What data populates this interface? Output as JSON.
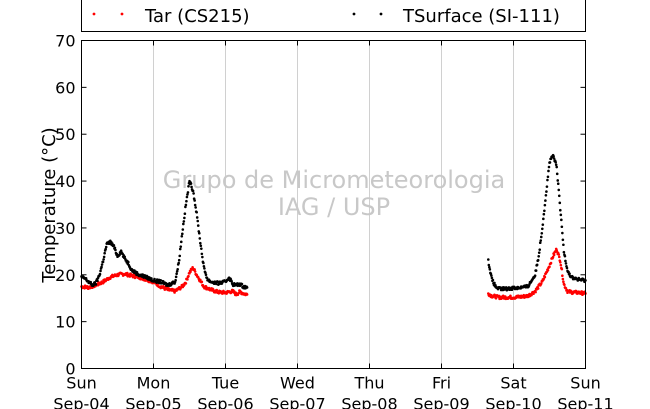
{
  "chart_data": {
    "type": "scatter",
    "title": "",
    "xlabel": "",
    "ylabel": "Temperature (°C)",
    "ylim": [
      0,
      70
    ],
    "yticks": [
      0,
      10,
      20,
      30,
      40,
      50,
      60,
      70
    ],
    "xlim": [
      0,
      7
    ],
    "x_unit": "days from Sun Sep-04 00:00",
    "xticks": [
      {
        "day": "Sun",
        "date": "Sep-04"
      },
      {
        "day": "Mon",
        "date": "Sep-05"
      },
      {
        "day": "Tue",
        "date": "Sep-06"
      },
      {
        "day": "Wed",
        "date": "Sep-07"
      },
      {
        "day": "Thu",
        "date": "Sep-08"
      },
      {
        "day": "Fri",
        "date": "Sep-09"
      },
      {
        "day": "Sat",
        "date": "Sep-10"
      },
      {
        "day": "Sun",
        "date": "Sep-11"
      }
    ],
    "grid": "vertical",
    "legend_position": "top",
    "watermark": [
      "Grupo de Micrometeorologia",
      "IAG / USP"
    ],
    "series": [
      {
        "name": "Tar (CS215)",
        "color": "#ff0000",
        "segments": [
          {
            "x": [
              0.0,
              0.1,
              0.2,
              0.3,
              0.4,
              0.5,
              0.6,
              0.7,
              0.8,
              0.9,
              1.0,
              1.1,
              1.2,
              1.3,
              1.4,
              1.45,
              1.5,
              1.55,
              1.6,
              1.7,
              1.8,
              1.9,
              2.0,
              2.1,
              2.15,
              2.2,
              2.25,
              2.3
            ],
            "y": [
              17.5,
              17.3,
              17.8,
              18.5,
              19.5,
              20.0,
              20.2,
              19.8,
              19.5,
              19.0,
              18.5,
              17.5,
              16.8,
              16.5,
              17.5,
              18.5,
              20.5,
              21.5,
              20.0,
              17.5,
              16.8,
              16.3,
              16.2,
              16.5,
              15.8,
              16.4,
              16.0,
              15.8
            ]
          },
          {
            "x": [
              5.65,
              5.7,
              5.8,
              5.9,
              6.0,
              6.1,
              6.2,
              6.3,
              6.4,
              6.5,
              6.55,
              6.6,
              6.65,
              6.7,
              6.75,
              6.8,
              6.9,
              7.0
            ],
            "y": [
              16.0,
              15.5,
              15.2,
              15.2,
              15.2,
              15.3,
              15.5,
              16.5,
              18.5,
              22.0,
              24.0,
              25.5,
              23.0,
              18.0,
              16.5,
              16.3,
              16.2,
              16.0
            ]
          }
        ]
      },
      {
        "name": "TSurface (SI-111)",
        "color": "#000000",
        "segments": [
          {
            "x": [
              0.0,
              0.05,
              0.1,
              0.15,
              0.2,
              0.25,
              0.3,
              0.35,
              0.4,
              0.45,
              0.5,
              0.55,
              0.6,
              0.65,
              0.7,
              0.8,
              0.9,
              1.0,
              1.1,
              1.2,
              1.3,
              1.35,
              1.4,
              1.45,
              1.5,
              1.55,
              1.6,
              1.65,
              1.7,
              1.75,
              1.8,
              1.9,
              2.0,
              2.05,
              2.1,
              2.15,
              2.2,
              2.25,
              2.3
            ],
            "y": [
              19.5,
              19.2,
              18.5,
              17.8,
              18.2,
              20.0,
              23.0,
              26.5,
              27.0,
              26.0,
              24.0,
              25.0,
              23.5,
              22.5,
              21.0,
              20.0,
              19.5,
              18.8,
              18.5,
              17.8,
              18.5,
              22.5,
              29.0,
              35.0,
              40.0,
              38.0,
              33.0,
              27.0,
              21.5,
              19.0,
              18.5,
              18.2,
              18.5,
              19.5,
              18.0,
              17.8,
              18.0,
              17.5,
              17.3
            ]
          },
          {
            "x": [
              5.65,
              5.7,
              5.75,
              5.8,
              5.9,
              6.0,
              6.1,
              6.2,
              6.3,
              6.35,
              6.4,
              6.45,
              6.5,
              6.55,
              6.6,
              6.65,
              6.7,
              6.75,
              6.8,
              6.9,
              7.0
            ],
            "y": [
              23.0,
              19.0,
              17.5,
              17.0,
              17.0,
              17.2,
              17.3,
              17.5,
              20.0,
              24.0,
              30.0,
              37.0,
              44.0,
              45.5,
              43.0,
              34.0,
              25.0,
              21.0,
              19.5,
              19.0,
              18.8
            ]
          }
        ]
      }
    ]
  }
}
